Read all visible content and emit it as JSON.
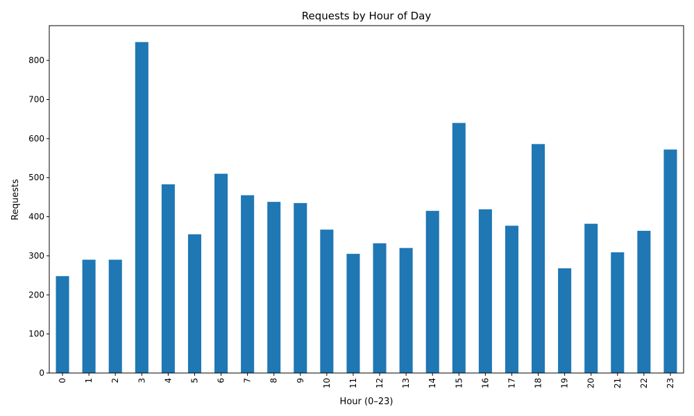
{
  "colors": {
    "bar": "#1f77b4",
    "axis": "#000000",
    "background": "#ffffff"
  },
  "chart_data": {
    "type": "bar",
    "title": "Requests by Hour of Day",
    "xlabel": "Hour (0–23)",
    "ylabel": "Requests",
    "categories": [
      "0",
      "1",
      "2",
      "3",
      "4",
      "5",
      "6",
      "7",
      "8",
      "9",
      "10",
      "11",
      "12",
      "13",
      "14",
      "15",
      "16",
      "17",
      "18",
      "19",
      "20",
      "21",
      "22",
      "23"
    ],
    "values": [
      248,
      290,
      290,
      847,
      483,
      355,
      510,
      455,
      438,
      435,
      367,
      305,
      332,
      320,
      415,
      640,
      419,
      377,
      586,
      268,
      382,
      309,
      364,
      572
    ],
    "ylim": [
      0,
      889
    ],
    "yticks": [
      0,
      100,
      200,
      300,
      400,
      500,
      600,
      700,
      800
    ],
    "grid": false,
    "legend": "none"
  }
}
